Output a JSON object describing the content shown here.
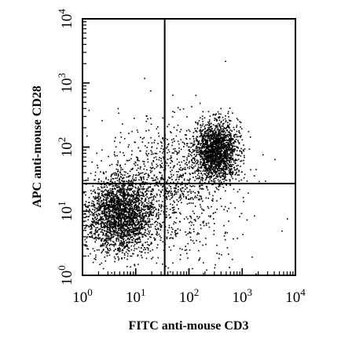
{
  "chart_data": {
    "type": "scatter",
    "title": "",
    "xlabel": "FITC anti-mouse CD3",
    "ylabel": "APC anti-mouse CD28",
    "xscale": "log",
    "yscale": "log",
    "xlim": [
      1,
      10000
    ],
    "ylim": [
      1,
      10000
    ],
    "x_ticks": [
      {
        "base": "10",
        "exp": "0"
      },
      {
        "base": "10",
        "exp": "1"
      },
      {
        "base": "10",
        "exp": "2"
      },
      {
        "base": "10",
        "exp": "3"
      },
      {
        "base": "10",
        "exp": "4"
      }
    ],
    "y_ticks": [
      {
        "base": "10",
        "exp": "0"
      },
      {
        "base": "10",
        "exp": "1"
      },
      {
        "base": "10",
        "exp": "2"
      },
      {
        "base": "10",
        "exp": "3"
      },
      {
        "base": "10",
        "exp": "4"
      }
    ],
    "quadrant_gates": {
      "x": 35,
      "y": 27
    },
    "grid": false,
    "legend": "none",
    "colors": {
      "points": "#000000",
      "axes": "#000000"
    },
    "populations": [
      {
        "center_x": 5,
        "center_y": 9,
        "spread_x_decades": 0.33,
        "spread_y_decades": 0.3,
        "approx_events": 2400
      },
      {
        "center_x": 320,
        "center_y": 90,
        "spread_x_decades": 0.2,
        "spread_y_decades": 0.22,
        "approx_events": 1900
      },
      {
        "center_x": 40,
        "center_y": 30,
        "spread_x_decades": 0.5,
        "spread_y_decades": 0.45,
        "approx_events": 650
      },
      {
        "center_x": 60,
        "center_y": 15,
        "spread_x_decades": 0.7,
        "spread_y_decades": 0.7,
        "approx_events": 450
      }
    ]
  }
}
